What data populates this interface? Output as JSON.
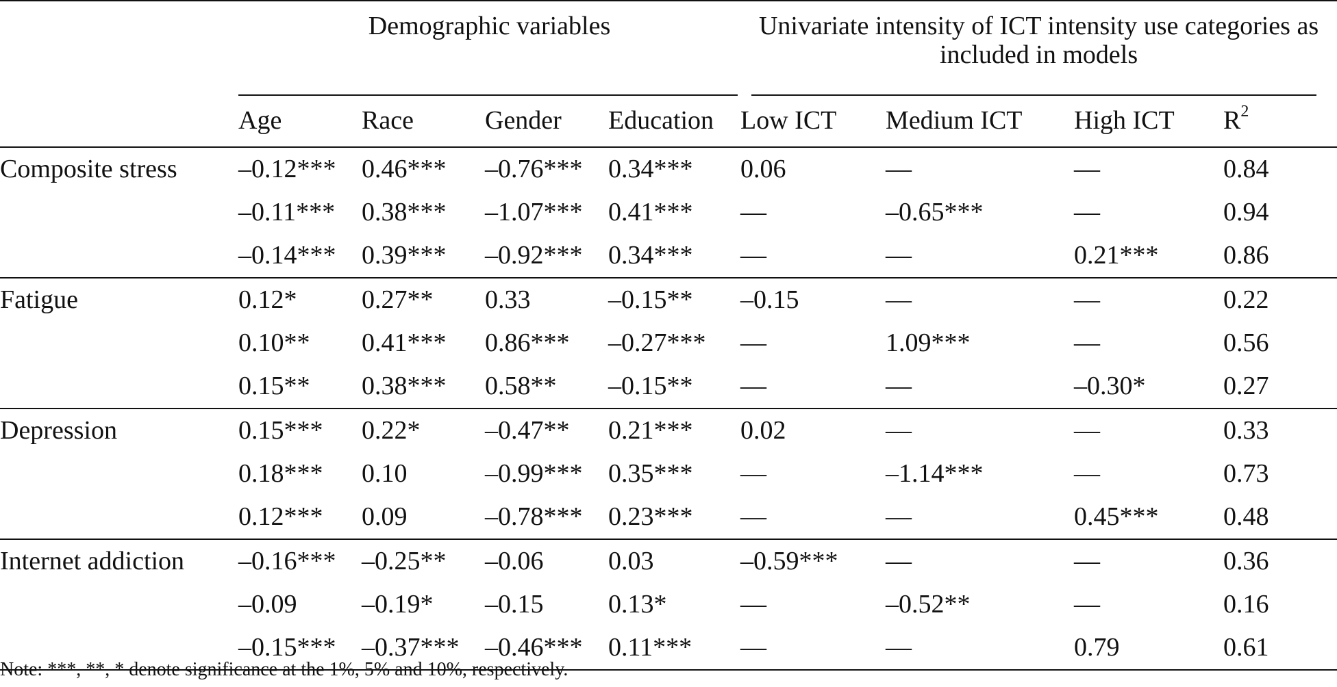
{
  "headers": {
    "group_demographic": "Demographic variables",
    "group_ict": "Univariate intensity of ICT intensity use categories as included in models",
    "columns": [
      "Age",
      "Race",
      "Gender",
      "Education",
      "Low ICT",
      "Medium ICT",
      "High ICT",
      "R"
    ],
    "r2_superscript": "2"
  },
  "groups": [
    {
      "label": "Composite stress",
      "rows": [
        [
          "–0.12***",
          "0.46***",
          "–0.76***",
          "0.34***",
          "0.06",
          "—",
          "—",
          "0.84"
        ],
        [
          "–0.11***",
          "0.38***",
          "–1.07***",
          "0.41***",
          "—",
          "–0.65***",
          "—",
          "0.94"
        ],
        [
          "–0.14***",
          "0.39***",
          "–0.92***",
          "0.34***",
          "—",
          "—",
          "0.21***",
          "0.86"
        ]
      ]
    },
    {
      "label": "Fatigue",
      "rows": [
        [
          "0.12*",
          "0.27**",
          "0.33",
          "–0.15**",
          "–0.15",
          "—",
          "—",
          "0.22"
        ],
        [
          "0.10**",
          "0.41***",
          "0.86***",
          "–0.27***",
          "—",
          "1.09***",
          "—",
          "0.56"
        ],
        [
          "0.15**",
          "0.38***",
          "0.58**",
          "–0.15**",
          "—",
          "—",
          "–0.30*",
          "0.27"
        ]
      ]
    },
    {
      "label": "Depression",
      "rows": [
        [
          "0.15***",
          "0.22*",
          "–0.47**",
          "0.21***",
          "0.02",
          "—",
          "—",
          "0.33"
        ],
        [
          "0.18***",
          "0.10",
          "–0.99***",
          "0.35***",
          "—",
          "–1.14***",
          "—",
          "0.73"
        ],
        [
          "0.12***",
          "0.09",
          "–0.78***",
          "0.23***",
          "—",
          "—",
          "0.45***",
          "0.48"
        ]
      ]
    },
    {
      "label": "Internet addiction",
      "rows": [
        [
          "–0.16***",
          "–0.25**",
          "–0.06",
          "0.03",
          "–0.59***",
          "—",
          "—",
          "0.36"
        ],
        [
          "–0.09",
          "–0.19*",
          "–0.15",
          "0.13*",
          "—",
          "–0.52**",
          "—",
          "0.16"
        ],
        [
          "–0.15***",
          "–0.37***",
          "–0.46***",
          "0.11***",
          "—",
          "—",
          "0.79",
          "0.61"
        ]
      ]
    }
  ],
  "note": "Note: ***, **, * denote significance at the 1%, 5% and 10%, respectively."
}
